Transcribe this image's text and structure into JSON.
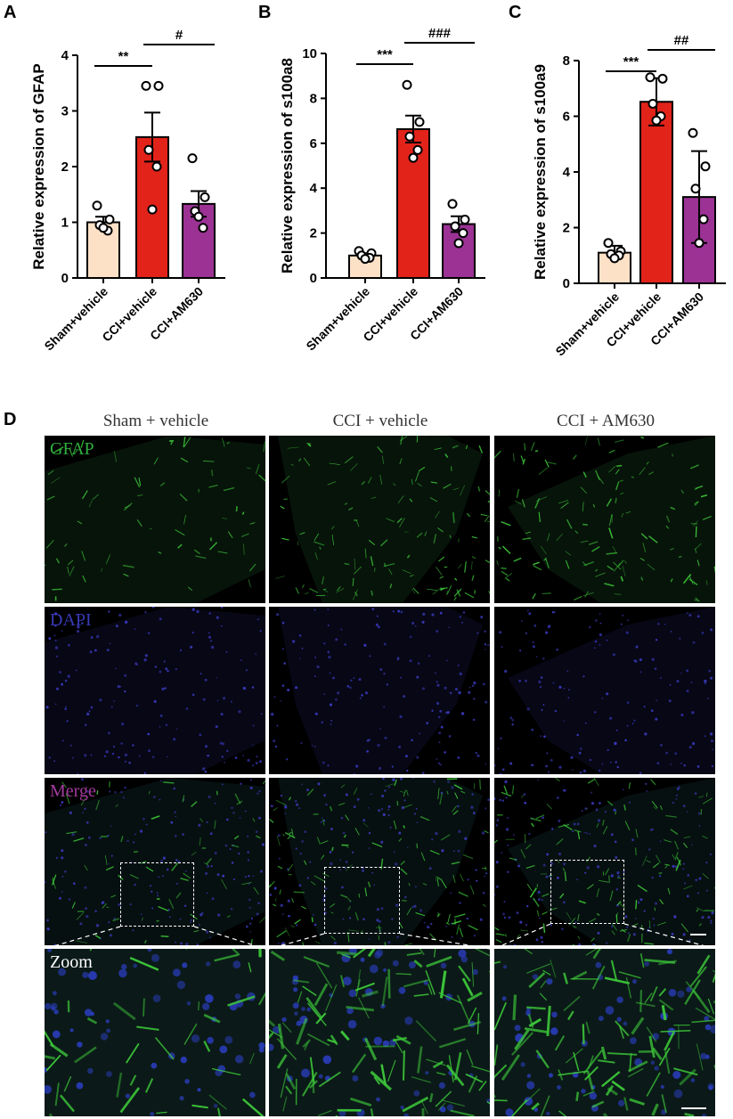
{
  "chart_data": [
    {
      "panel": "A",
      "type": "bar",
      "ylabel": "Relative expression of GFAP",
      "categories": [
        "Sham+vehicle",
        "CCI+vehicle",
        "CCI+AM630"
      ],
      "values": [
        1.0,
        2.53,
        1.33
      ],
      "error": [
        0.1,
        0.44,
        0.23
      ],
      "points": [
        [
          1.3,
          1.05,
          0.95,
          0.85,
          0.9
        ],
        [
          3.45,
          3.45,
          2.3,
          2.0,
          1.23
        ],
        [
          2.15,
          1.45,
          1.2,
          0.9,
          1.1
        ]
      ],
      "ylim": [
        0,
        4
      ],
      "yticks": [
        0,
        1,
        2,
        3,
        4
      ],
      "colors": [
        "#fde1c7",
        "#e2231a",
        "#9b3294"
      ],
      "significance": [
        {
          "pair": [
            0,
            1
          ],
          "label": "**"
        },
        {
          "pair": [
            1,
            2
          ],
          "label": "#"
        }
      ]
    },
    {
      "panel": "B",
      "type": "bar",
      "ylabel": "Relative expression of s100a8",
      "categories": [
        "Sham+vehicle",
        "CCI+vehicle",
        "CCI+AM630"
      ],
      "values": [
        1.0,
        6.63,
        2.4
      ],
      "error": [
        0.1,
        0.6,
        0.35
      ],
      "points": [
        [
          1.2,
          1.1,
          1.0,
          0.9,
          0.85
        ],
        [
          8.6,
          6.95,
          6.3,
          5.7,
          5.35
        ],
        [
          3.3,
          2.6,
          2.3,
          2.0,
          1.55
        ]
      ],
      "ylim": [
        0,
        10
      ],
      "yticks": [
        0,
        2,
        4,
        6,
        8,
        10
      ],
      "colors": [
        "#fde1c7",
        "#e2231a",
        "#9b3294"
      ],
      "significance": [
        {
          "pair": [
            0,
            1
          ],
          "label": "***"
        },
        {
          "pair": [
            1,
            2
          ],
          "label": "###"
        }
      ]
    },
    {
      "panel": "C",
      "type": "bar",
      "ylabel": "Relative expression of s100a9",
      "categories": [
        "Sham+vehicle",
        "CCI+vehicle",
        "CCI+AM630"
      ],
      "values": [
        1.1,
        6.52,
        3.1
      ],
      "error": [
        0.25,
        0.85,
        1.65
      ],
      "points": [
        [
          1.45,
          1.15,
          1.05,
          1.0,
          0.9
        ],
        [
          7.4,
          7.35,
          6.45,
          6.0,
          5.85
        ],
        [
          5.4,
          4.2,
          3.4,
          2.3,
          1.45
        ]
      ],
      "ylim": [
        0,
        8
      ],
      "yticks": [
        0,
        2,
        4,
        6,
        8
      ],
      "colors": [
        "#fde1c7",
        "#e2231a",
        "#9b3294"
      ],
      "significance": [
        {
          "pair": [
            0,
            1
          ],
          "label": "***"
        },
        {
          "pair": [
            1,
            2
          ],
          "label": "##"
        }
      ]
    }
  ],
  "panel_d": {
    "label": "D",
    "columns": [
      "Sham + vehicle",
      "CCI + vehicle",
      "CCI + AM630"
    ],
    "rows": [
      {
        "label": "GFAP",
        "color": "#2fae3f"
      },
      {
        "label": "DAPI",
        "color": "#3a3ab8"
      },
      {
        "label": "Merge",
        "color": "#a23b9e"
      },
      {
        "label": "Zoom",
        "color": "#ffffff"
      }
    ]
  }
}
